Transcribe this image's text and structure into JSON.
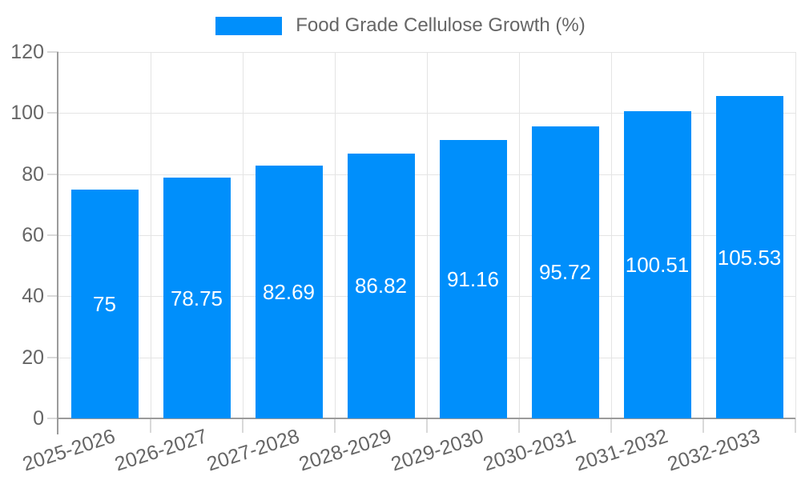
{
  "chart_data": {
    "type": "bar",
    "title": "Food Grade Cellulose Growth (%)",
    "legend": {
      "position": "top",
      "entries": [
        {
          "label": "Food Grade Cellulose Growth (%)",
          "color": "#008ffb"
        }
      ]
    },
    "categories": [
      "2025-2026",
      "2026-2027",
      "2027-2028",
      "2028-2029",
      "2029-2030",
      "2030-2031",
      "2031-2032",
      "2032-2033"
    ],
    "values": [
      75,
      78.75,
      82.69,
      86.82,
      91.16,
      95.72,
      100.51,
      105.53
    ],
    "bar_value_labels": [
      "75",
      "78.75",
      "82.69",
      "86.82",
      "91.16",
      "95.72",
      "100.51",
      "105.53"
    ],
    "xlabel": "",
    "ylabel": "",
    "ylim": [
      0,
      120
    ],
    "yticks": [
      0,
      20,
      40,
      60,
      80,
      100,
      120
    ],
    "grid": true,
    "x_label_rotation_deg": -18,
    "colors": {
      "bar": "#008ffb",
      "bar_label": "#ffffff",
      "axis_line": "#9b9b9b",
      "gridline": "#e4e4e4",
      "tick": "#d9d9d9",
      "text": "#666666",
      "background": "#ffffff"
    }
  }
}
